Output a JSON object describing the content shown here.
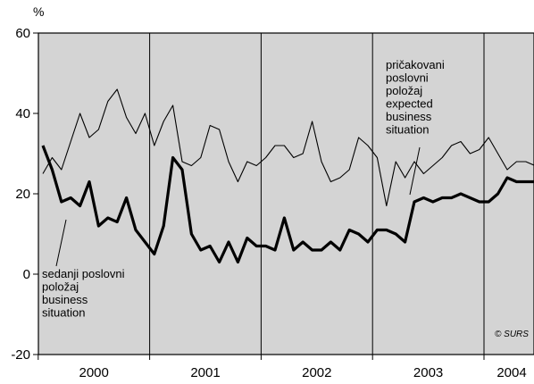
{
  "chart_data": {
    "type": "line",
    "title": "",
    "xlabel": "",
    "ylabel": "%",
    "ylim": [
      -20,
      60
    ],
    "yticks": [
      "60",
      "40",
      "20",
      "0",
      "-20"
    ],
    "years": [
      "2000",
      "2001",
      "2002",
      "2003",
      "2004"
    ],
    "x_start": "2000-01",
    "x_end": "2004-05",
    "grid": "vertical lines at year boundaries",
    "background": "#d4d4d4",
    "series": [
      {
        "name": "pričakovani poslovni položaj expected business situation",
        "label_lines": [
          "pričakovani",
          "poslovni",
          "položaj",
          "expected",
          "business",
          "situation"
        ],
        "style": "thin",
        "color": "#000000",
        "values": [
          25,
          29,
          26,
          33,
          40,
          34,
          36,
          43,
          46,
          39,
          35,
          40,
          32,
          38,
          42,
          28,
          27,
          29,
          37,
          36,
          28,
          23,
          28,
          27,
          29,
          32,
          32,
          29,
          30,
          38,
          28,
          23,
          24,
          26,
          34,
          32,
          29,
          17,
          28,
          24,
          28,
          25,
          27,
          29,
          32,
          33,
          30,
          31,
          34,
          30,
          26,
          28,
          28,
          27
        ]
      },
      {
        "name": "sedanji poslovni položaj business situation",
        "label_lines": [
          "sedanji poslovni",
          "položaj",
          "business",
          "situation"
        ],
        "style": "thick",
        "color": "#000000",
        "values": [
          32,
          26,
          18,
          19,
          17,
          23,
          12,
          14,
          13,
          19,
          11,
          8,
          5,
          12,
          29,
          26,
          10,
          6,
          7,
          3,
          8,
          3,
          9,
          7,
          7,
          6,
          14,
          6,
          8,
          6,
          6,
          8,
          6,
          11,
          10,
          8,
          11,
          11,
          10,
          8,
          18,
          19,
          18,
          19,
          19,
          20,
          19,
          18,
          18,
          20,
          24,
          23,
          23,
          23
        ]
      }
    ]
  },
  "copyright": "© SURS"
}
